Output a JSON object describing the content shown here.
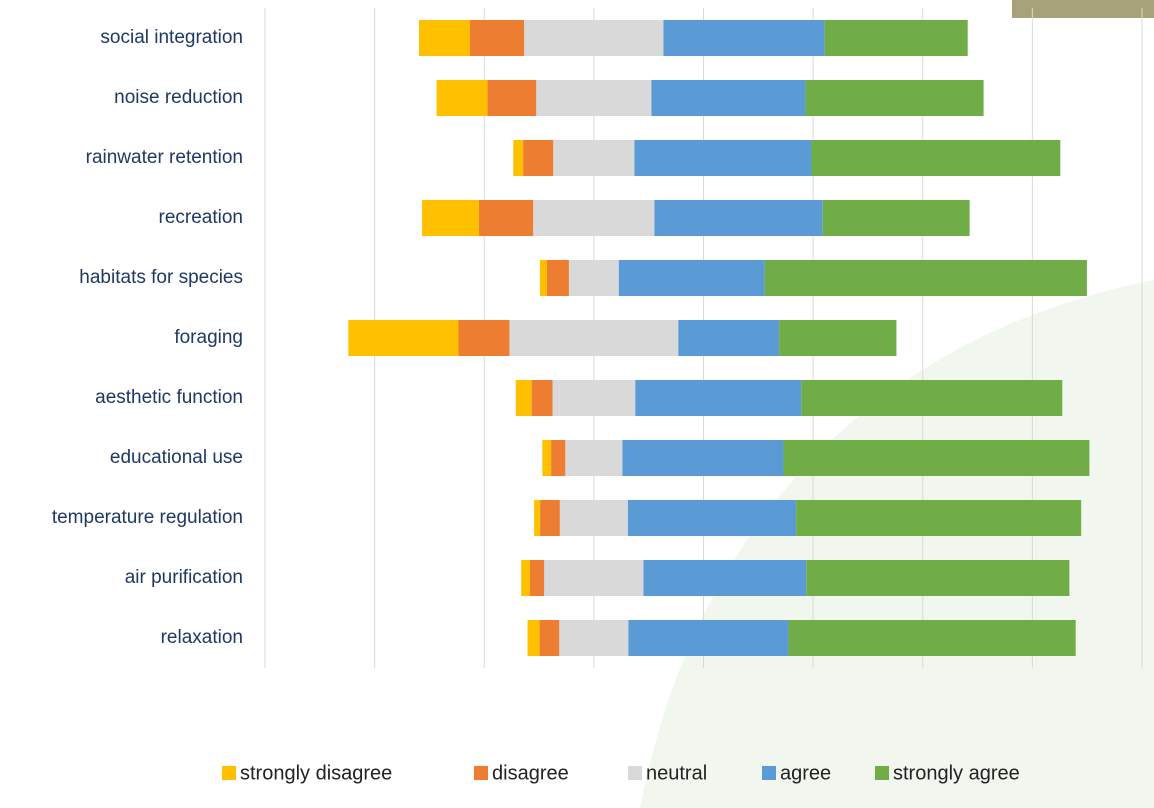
{
  "chart_data": {
    "type": "diverging-bar",
    "categories": [
      "social integration",
      "noise reduction",
      "rainwater retention",
      "recreation",
      "habitats for species",
      "foraging",
      "aesthetic function",
      "educational use",
      "temperature regulation",
      "air purification",
      "relaxation"
    ],
    "series": [
      {
        "name": "strongly disagree",
        "color": "#ffc000",
        "values": [
          9.3,
          9.3,
          1.8,
          10.4,
          1.3,
          20.1,
          2.9,
          1.6,
          1.1,
          1.6,
          2.2
        ]
      },
      {
        "name": "disagree",
        "color": "#ed7d31",
        "values": [
          9.9,
          8.9,
          5.5,
          9.9,
          4.0,
          9.3,
          3.8,
          2.6,
          3.6,
          2.6,
          3.6
        ]
      },
      {
        "name": "neutral",
        "color": "#d9d9d9",
        "values": [
          25.4,
          21.0,
          14.8,
          22.1,
          9.1,
          30.8,
          15.1,
          10.4,
          12.4,
          18.1,
          12.6
        ]
      },
      {
        "name": "agree",
        "color": "#5b9bd5",
        "values": [
          29.4,
          28.1,
          32.3,
          30.7,
          26.6,
          18.4,
          30.3,
          29.4,
          30.7,
          29.7,
          29.2
        ]
      },
      {
        "name": "strongly agree",
        "color": "#70ad47",
        "values": [
          26.1,
          32.5,
          45.4,
          26.8,
          58.8,
          21.4,
          47.6,
          55.8,
          52.0,
          48.0,
          52.4
        ]
      }
    ],
    "xlim": [
      -60,
      100
    ],
    "xticks": [
      -60,
      -40,
      -20,
      0,
      20,
      40,
      60,
      80,
      100
    ],
    "grid": true
  }
}
